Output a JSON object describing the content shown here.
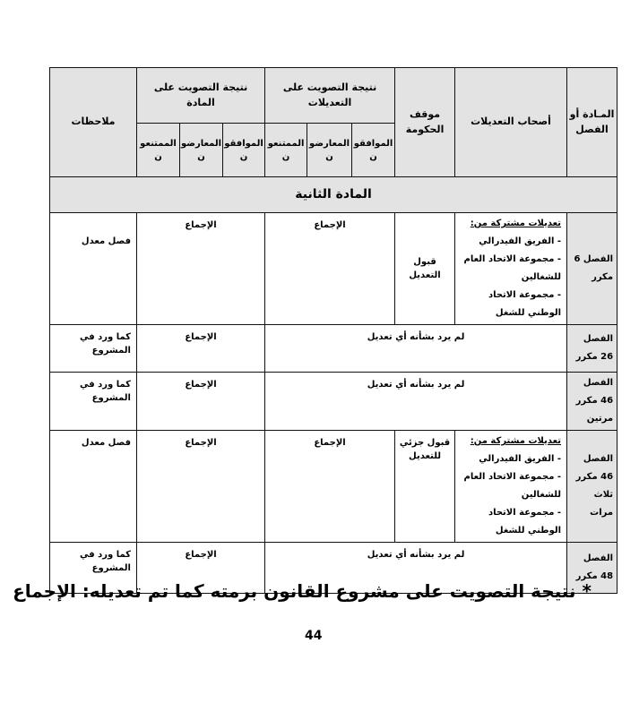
{
  "header": {
    "article_or_chapter": "المـادة أو الفصل",
    "amendment_owners": "أصحاب التعديلات",
    "government_position": "موقف الحكومة",
    "vote_amendments": "نتيجة التصويت على التعديلات",
    "vote_article": "نتيجة التصويت على المادة",
    "notes": "ملاحظات",
    "for": "الموافقون",
    "against": "المعارضون",
    "abstain": "الممتنعون"
  },
  "section_title": "المادة الثانية",
  "rows": [
    {
      "chapter": "الفصل 6 مكرر",
      "owners_title": "تعديلات مشتركة من:",
      "owners": [
        "- الفريق الفيدرالي",
        "- مجموعة الاتحاد العام للشغالين",
        "- مجموعة الاتحاد الوطني للشغل"
      ],
      "gov": "قبول التعديل",
      "vote_amend": "الإجماع",
      "vote_article": "الإجماع",
      "note": "فصل معدل"
    },
    {
      "chapter": "الفصل 26 مكرر",
      "no_amend": "لم يرد بشأنه أي تعديل",
      "vote_article": "الإجماع",
      "note": "كما ورد في المشروع"
    },
    {
      "chapter": "الفصل 46 مكرر مرتين",
      "no_amend": "لم يرد بشأنه أي تعديل",
      "vote_article": "الإجماع",
      "note": "كما ورد في المشروع"
    },
    {
      "chapter": "الفصل 46 مكرر ثلاث مرات",
      "owners_title": "تعديلات مشتركة من:",
      "owners": [
        "- الفريق الفيدرالي",
        "- مجموعة الاتحاد العام للشغالين",
        "- مجموعة الاتحاد الوطني للشغل"
      ],
      "gov": "قبول جزئي للتعديل",
      "vote_amend": "الإجماع",
      "vote_article": "الإجماع",
      "note": "فصل معدل"
    },
    {
      "chapter": "الفصل 48 مكرر",
      "no_amend": "لم يرد بشأنه أي تعديل",
      "vote_article": "الإجماع",
      "note": "كما ورد في المشروع"
    }
  ],
  "footnote": "* نتيجة التصويت على مشروع القانون برمته كما تم تعديله:  الإجماع",
  "page_number": "44"
}
